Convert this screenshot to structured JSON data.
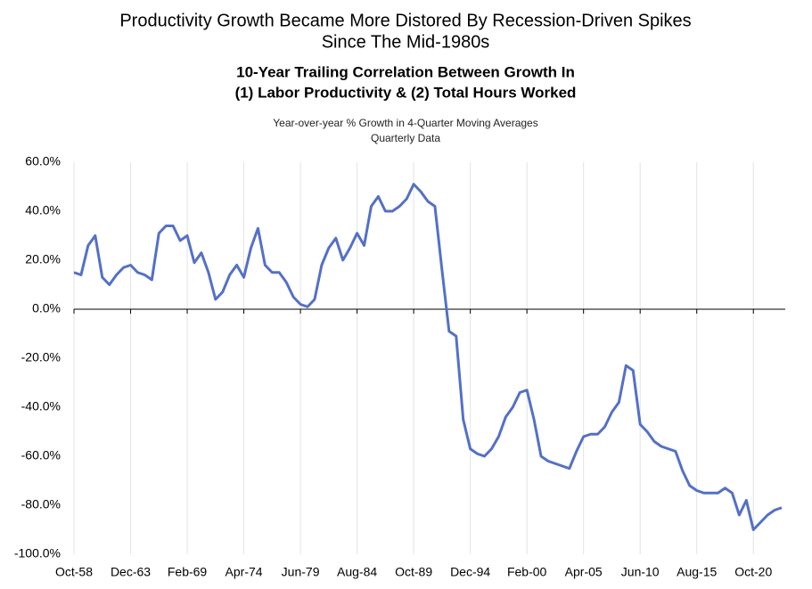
{
  "chart_data": {
    "type": "line",
    "title": [
      "Productivity Growth Became More Distored By Recession-Driven Spikes",
      "Since The Mid-1980s"
    ],
    "subtitle": [
      "10-Year Trailing Correlation Between Growth In",
      "(1) Labor Productivity & (2) Total Hours Worked"
    ],
    "note": [
      "Year-over-year % Growth in 4-Quarter Moving Averages",
      "Quarterly Data"
    ],
    "categories": [
      "Oct-58",
      null,
      null,
      null,
      null,
      null,
      null,
      null,
      "Dec-63",
      null,
      null,
      null,
      null,
      null,
      null,
      null,
      "Feb-69",
      null,
      null,
      null,
      null,
      null,
      null,
      null,
      "Apr-74",
      null,
      null,
      null,
      null,
      null,
      null,
      null,
      "Jun-79",
      null,
      null,
      null,
      null,
      null,
      null,
      null,
      "Aug-84",
      null,
      null,
      null,
      null,
      null,
      null,
      null,
      "Oct-89",
      null,
      null,
      null,
      null,
      null,
      null,
      null,
      "Dec-94",
      null,
      null,
      null,
      null,
      null,
      null,
      null,
      "Feb-00",
      null,
      null,
      null,
      null,
      null,
      null,
      null,
      "Apr-05",
      null,
      null,
      null,
      null,
      null,
      null,
      null,
      "Jun-10",
      null,
      null,
      null,
      null,
      null,
      null,
      null,
      "Aug-15",
      null,
      null,
      null,
      null,
      null,
      null,
      null,
      "Oct-20",
      null,
      null,
      null,
      null
    ],
    "color": "#5470c6",
    "values": [
      15,
      14,
      26,
      30,
      13,
      10,
      14,
      17,
      18,
      15,
      14,
      12,
      31,
      34,
      34,
      28,
      30,
      19,
      23,
      15,
      4,
      7,
      14,
      18,
      13,
      25,
      33,
      18,
      15,
      15,
      11,
      5,
      2,
      1,
      4,
      18,
      25,
      29,
      20,
      25,
      31,
      26,
      42,
      46,
      40,
      40,
      42,
      45,
      51,
      48,
      44,
      42,
      16,
      -9,
      -11,
      -45,
      -57,
      -59,
      -60,
      -57,
      -52,
      -44,
      -40,
      -34,
      -33,
      -45,
      -60,
      -62,
      -63,
      -64,
      -65,
      -58,
      -52,
      -51,
      -51,
      -48,
      -42,
      -38,
      -23,
      -25,
      -47,
      -50,
      -54,
      -56,
      -57,
      -58,
      -66,
      -72,
      -74,
      -75,
      -75,
      -75,
      -73,
      -75,
      -84,
      -78,
      -90,
      -87,
      -84,
      -82,
      -81
    ],
    "ylim": [
      -100,
      60
    ],
    "yticks": [
      {
        "value": -100,
        "label": "-100.0%"
      },
      {
        "value": -80,
        "label": "-80.0%"
      },
      {
        "value": -60,
        "label": "-60.0%"
      },
      {
        "value": -40,
        "label": "-40.0%"
      },
      {
        "value": -20,
        "label": "-20.0%"
      },
      {
        "value": 0,
        "label": "0.0%"
      },
      {
        "value": 20,
        "label": "20.0%"
      },
      {
        "value": 40,
        "label": "40.0%"
      },
      {
        "value": 60,
        "label": "60.0%"
      }
    ],
    "grid": true
  }
}
